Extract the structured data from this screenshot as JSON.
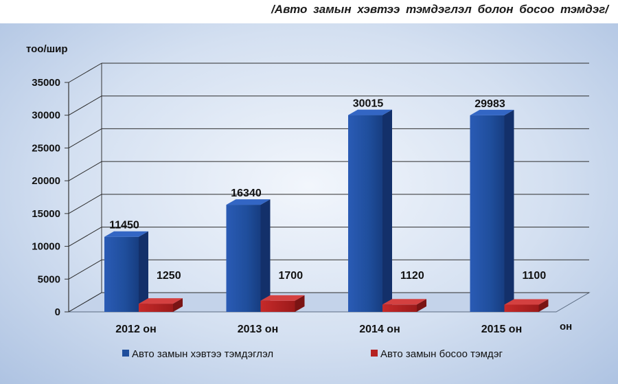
{
  "title": "/Авто замын хэвтээ тэмдэглэл болон босоо тэмдэг/",
  "chart_data": {
    "type": "bar",
    "categories": [
      "2012 он",
      "2013 он",
      "2014 он",
      "2015 он"
    ],
    "series": [
      {
        "name": "Авто замын хэвтээ тэмдэглэл",
        "values": [
          11450,
          16340,
          30015,
          29983
        ],
        "color": "#1f4e9c"
      },
      {
        "name": "Авто замын босоо тэмдэг",
        "values": [
          1250,
          1700,
          1120,
          1100
        ],
        "color": "#b52121"
      }
    ],
    "y_ticks": [
      0,
      5000,
      10000,
      15000,
      20000,
      25000,
      30000,
      35000
    ],
    "ylim": [
      0,
      35000
    ],
    "ylabel": "тоо/шир",
    "xlabel": "он",
    "legend_position": "bottom",
    "grid": true,
    "style": "3d-column"
  }
}
